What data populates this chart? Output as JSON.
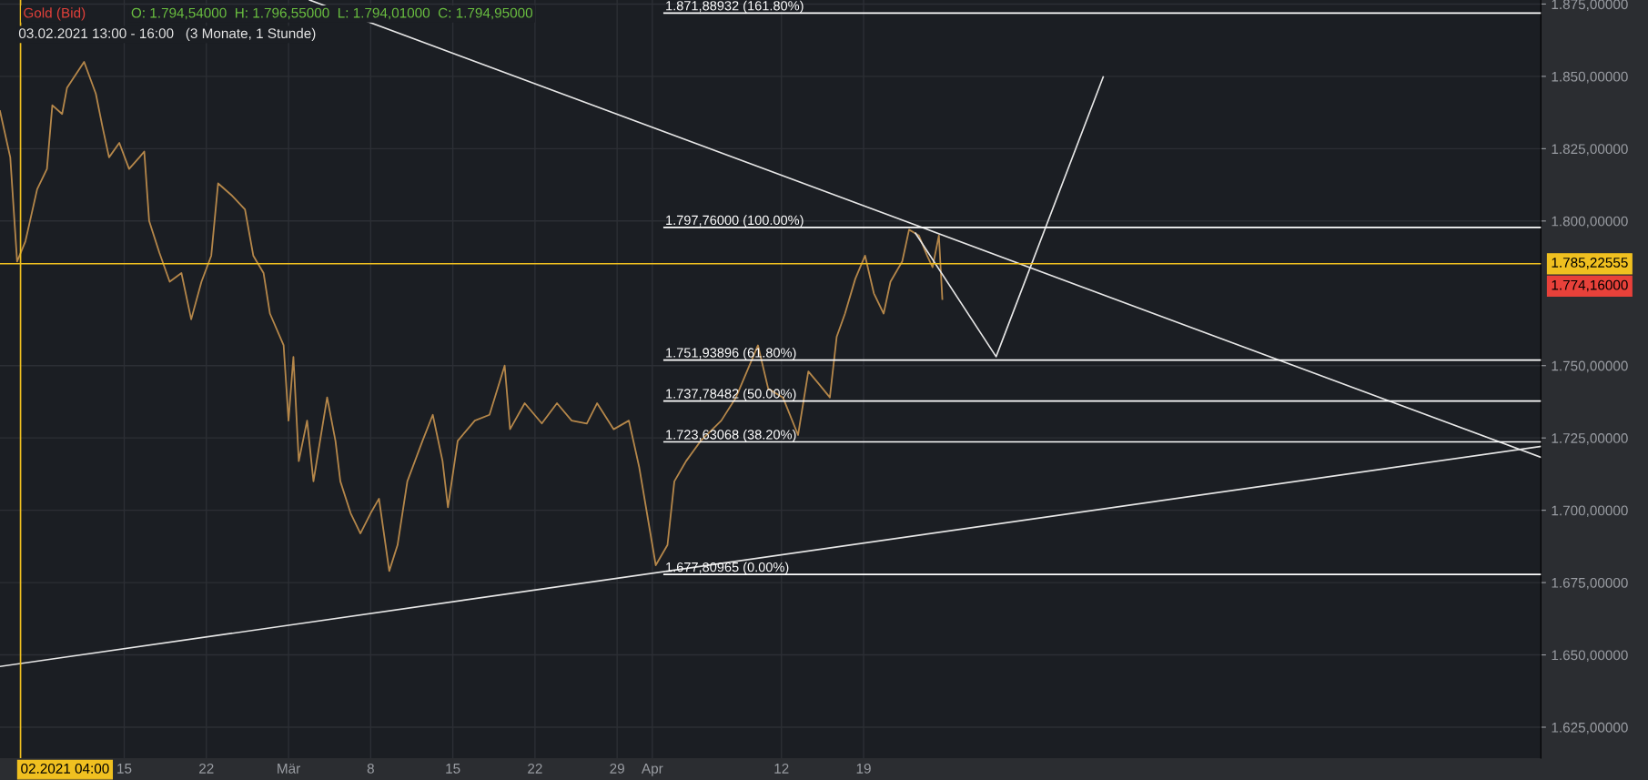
{
  "chart_data": {
    "type": "line",
    "title": "Gold (Bid)",
    "subtitle": "O: 1.794,54000  H: 1.796,55000  L: 1.794,01000  C: 1.794,95000",
    "annotations": [
      "03.02.2021 13:00 - 16:00   (3 Monate, 1 Stunde)",
      "1.774,16000"
    ],
    "xlim": [
      "2021-02-04T10:00",
      "2021-06-15T17:00"
    ],
    "xticks": [
      {
        "value": "2021-02-15",
        "label": "15"
      },
      {
        "value": "2021-02-22",
        "label": "22"
      },
      {
        "value": "2021-03-01",
        "label": "Mär"
      },
      {
        "value": "2021-03-08",
        "label": "8"
      },
      {
        "value": "2021-03-15",
        "label": "15"
      },
      {
        "value": "2021-03-22",
        "label": "22"
      },
      {
        "value": "2021-03-29",
        "label": "29"
      },
      {
        "value": "2021-04-01",
        "label": "Apr"
      },
      {
        "value": "2021-04-12",
        "label": "12"
      },
      {
        "value": "2021-04-19",
        "label": "19"
      }
    ],
    "ylim": [
      1614.3,
      1876.4
    ],
    "yticks": [
      {
        "value": 1625,
        "label": "1.625,00000"
      },
      {
        "value": 1650,
        "label": "1.650,00000"
      },
      {
        "value": 1675,
        "label": "1.675,00000"
      },
      {
        "value": 1700,
        "label": "1.700,00000"
      },
      {
        "value": 1725,
        "label": "1.725,00000"
      },
      {
        "value": 1750,
        "label": "1.750,00000"
      },
      {
        "value": 1800,
        "label": "1.800,00000"
      },
      {
        "value": 1825,
        "label": "1.825,00000"
      },
      {
        "value": 1850,
        "label": "1.850,00000"
      },
      {
        "value": 1875,
        "label": "1.875,00000"
      }
    ],
    "grid": true,
    "legend": false,
    "ref_lines": [
      {
        "axis": "x",
        "value": "2021-02-06T04:00",
        "label": "02.2021 04:00",
        "color": "#f0c020"
      },
      {
        "axis": "y",
        "value": 1785.22555,
        "label": "1.785,22555",
        "color": "#f0c020"
      }
    ],
    "series": [
      {
        "color": "#b5874a",
        "x": [
          "2021-02-04T10:00",
          "2021-02-05T07:00",
          "2021-02-05T21:00",
          "2021-02-06T14:00",
          "2021-02-07T14:00",
          "2021-02-08T10:00",
          "2021-02-08T21:00",
          "2021-02-09T17:00",
          "2021-02-10T03:00",
          "2021-02-11T14:00",
          "2021-02-12T14:00",
          "2021-02-13T03:00",
          "2021-02-13T17:00",
          "2021-02-14T14:00",
          "2021-02-15T10:00",
          "2021-02-16T07:00",
          "2021-02-16T17:00",
          "2021-02-17T03:00",
          "2021-02-18T00:00",
          "2021-02-18T21:00",
          "2021-02-19T21:00",
          "2021-02-20T17:00",
          "2021-02-21T14:00",
          "2021-02-22T10:00",
          "2021-02-23T00:00",
          "2021-02-24T03:00",
          "2021-02-25T07:00",
          "2021-02-26T00:00",
          "2021-02-26T21:00",
          "2021-02-27T10:00",
          "2021-02-28T14:00",
          "2021-03-01T00:00",
          "2021-03-01T10:00",
          "2021-03-01T21:00",
          "2021-03-02T14:00",
          "2021-03-03T03:00",
          "2021-03-04T07:00",
          "2021-03-05T00:00",
          "2021-03-05T10:00",
          "2021-03-06T07:00",
          "2021-03-07T03:00",
          "2021-03-08T00:00",
          "2021-03-08T17:00",
          "2021-03-09T14:00",
          "2021-03-10T07:00",
          "2021-03-11T03:00",
          "2021-03-12T10:00",
          "2021-03-13T07:00",
          "2021-03-14T03:00",
          "2021-03-14T14:00",
          "2021-03-15T10:00",
          "2021-03-16T21:00",
          "2021-03-18T03:00",
          "2021-03-19T10:00",
          "2021-03-19T21:00",
          "2021-03-21T03:00",
          "2021-03-22T14:00",
          "2021-03-23T21:00",
          "2021-03-25T03:00",
          "2021-03-26T10:00",
          "2021-03-27T07:00",
          "2021-03-28T17:00",
          "2021-03-30T00:00",
          "2021-03-30T21:00",
          "2021-03-31T17:00",
          "2021-04-01T07:00",
          "2021-04-02T07:00",
          "2021-04-02T21:00",
          "2021-04-03T21:00",
          "2021-04-05T03:00",
          "2021-04-06T21:00",
          "2021-04-08T03:00",
          "2021-04-10T00:00",
          "2021-04-10T21:00",
          "2021-04-12T03:00",
          "2021-04-13T10:00",
          "2021-04-14T07:00",
          "2021-04-15T03:00",
          "2021-04-16T03:00",
          "2021-04-16T17:00",
          "2021-04-17T10:00",
          "2021-04-18T07:00",
          "2021-04-19T03:00",
          "2021-04-19T21:00",
          "2021-04-20T17:00",
          "2021-04-21T07:00",
          "2021-04-22T07:00",
          "2021-04-22T21:00",
          "2021-04-23T17:00",
          "2021-04-24T10:00",
          "2021-04-24T21:00",
          "2021-04-25T10:00",
          "2021-04-25T17:00"
        ],
        "values": [
          1838,
          1822,
          1786,
          1793,
          1811,
          1818,
          1840,
          1837,
          1846,
          1855,
          1844,
          1833,
          1822,
          1827,
          1818,
          1822,
          1824,
          1800,
          1789,
          1779,
          1782,
          1766,
          1779,
          1788,
          1813,
          1809,
          1804,
          1788,
          1782,
          1768,
          1757,
          1731,
          1753,
          1717,
          1731,
          1710,
          1739,
          1724,
          1710,
          1699,
          1692,
          1699,
          1704,
          1679,
          1688,
          1710,
          1724,
          1733,
          1717,
          1701,
          1724,
          1731,
          1733,
          1750,
          1728,
          1737,
          1730,
          1737,
          1731,
          1730,
          1737,
          1728,
          1731,
          1715,
          1695,
          1681,
          1688,
          1710,
          1717,
          1724,
          1731,
          1739,
          1757,
          1742,
          1739,
          1726,
          1748,
          1744,
          1739,
          1760,
          1768,
          1780,
          1788,
          1775,
          1768,
          1779,
          1786,
          1797,
          1795,
          1788,
          1784,
          1795,
          1773
        ]
      },
      {
        "color": "#e6e6e6",
        "x": [
          "2021-03-02T19:00",
          "2021-06-15T17:00"
        ],
        "values": [
          1876.4,
          1718.3
        ]
      },
      {
        "color": "#e6e6e6",
        "x": [
          "2021-02-04T10:00",
          "2021-06-15T17:00"
        ],
        "values": [
          1646.0,
          1722.1
        ]
      },
      {
        "color": "#e6e6e6",
        "x": [
          "2021-04-23T10:00",
          "2021-04-30T07:00",
          "2021-05-09T10:00"
        ],
        "values": [
          1795.8,
          1753.1,
          1849.8
        ]
      },
      {
        "name": "1.871,88932 (161.80%)",
        "color": "#ffffff",
        "x": [
          "2021-04-02T00:00",
          "2021-06-15T17:00"
        ],
        "values": [
          1871.88932,
          1871.88932
        ]
      },
      {
        "name": "1.797,76000 (100.00%)",
        "color": "#ffffff",
        "x": [
          "2021-04-02T00:00",
          "2021-06-15T17:00"
        ],
        "values": [
          1797.76,
          1797.76
        ]
      },
      {
        "name": "1.751,93896 (61.80%)",
        "color": "#ffffff",
        "x": [
          "2021-04-02T00:00",
          "2021-06-15T17:00"
        ],
        "values": [
          1751.93896,
          1751.93896
        ]
      },
      {
        "name": "1.737,78482 (50.00%)",
        "color": "#ffffff",
        "x": [
          "2021-04-02T00:00",
          "2021-06-15T17:00"
        ],
        "values": [
          1737.78482,
          1737.78482
        ]
      },
      {
        "name": "1.723,63068 (38.20%)",
        "color": "#ffffff",
        "x": [
          "2021-04-02T00:00",
          "2021-06-15T17:00"
        ],
        "values": [
          1723.63068,
          1723.63068
        ]
      },
      {
        "name": "1.677,80965 (0.00%)",
        "color": "#ffffff",
        "x": [
          "2021-04-02T00:00",
          "2021-06-15T17:00"
        ],
        "values": [
          1677.80965,
          1677.80965
        ]
      }
    ]
  }
}
